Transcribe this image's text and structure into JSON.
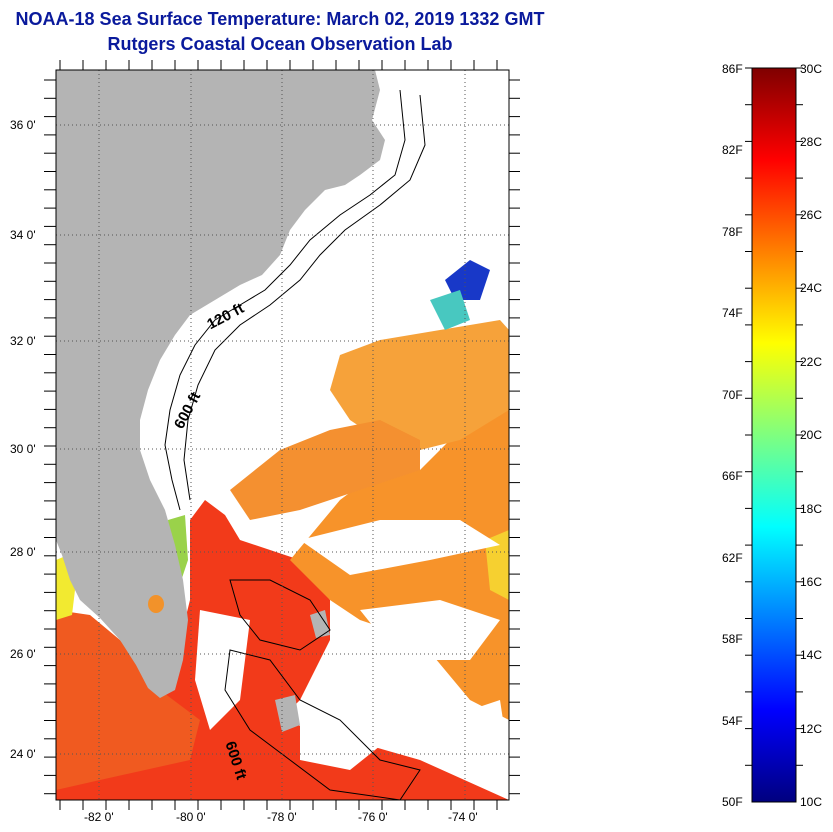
{
  "title": {
    "line1": "NOAA-18 Sea Surface Temperature:  March 02, 2019 1332 GMT",
    "line2": "Rutgers Coastal Ocean Observation Lab"
  },
  "map": {
    "lat_ticks": [
      "36 0'",
      "34 0'",
      "32 0'",
      "30 0'",
      "28 0'",
      "26 0'",
      "24 0'"
    ],
    "lon_ticks": [
      "-82 0'",
      "-80 0'",
      "-78 0'",
      "-76 0'",
      "-74 0'"
    ],
    "contour_labels": [
      "120 ft",
      "600 ft",
      "600 ft"
    ],
    "colors": {
      "land": "#b4b4b4",
      "cloud": "#ffffff",
      "warm_sst": "#f23a1a",
      "mid_sst": "#f7932a"
    }
  },
  "colorbar": {
    "f_labels": [
      "86F",
      "82F",
      "78F",
      "74F",
      "70F",
      "66F",
      "62F",
      "58F",
      "54F",
      "50F"
    ],
    "c_labels": [
      "30C",
      "28C",
      "26C",
      "24C",
      "22C",
      "20C",
      "18C",
      "16C",
      "14C",
      "12C",
      "10C"
    ]
  }
}
